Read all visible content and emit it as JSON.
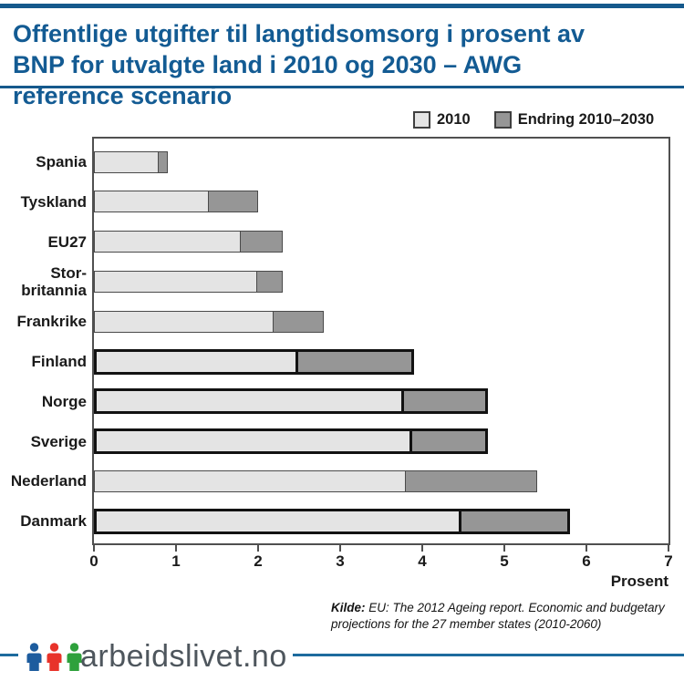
{
  "header": {
    "title": "Offentlige utgifter til langtidsomsorg i prosent av BNP for utvalgte land i 2010 og 2030 – AWG reference scenario"
  },
  "chart_data": {
    "type": "bar",
    "orientation": "horizontal",
    "title": "Offentlige utgifter til langtidsomsorg i prosent av BNP for utvalgte land i 2010 og 2030 – AWG reference scenario",
    "categories": [
      "Spania",
      "Tyskland",
      "EU27",
      "Stor-\nbritannia",
      "Frankrike",
      "Finland",
      "Norge",
      "Sverige",
      "Nederland",
      "Danmark"
    ],
    "series": [
      {
        "name": "2010",
        "values": [
          0.8,
          1.4,
          1.8,
          2.0,
          2.2,
          2.5,
          3.8,
          3.9,
          3.8,
          4.5
        ]
      },
      {
        "name": "Endring 2010–2030",
        "values": [
          0.1,
          0.6,
          0.5,
          0.3,
          0.6,
          1.4,
          1.0,
          0.9,
          1.6,
          1.3
        ]
      }
    ],
    "totals_2030": [
      0.9,
      2.0,
      2.3,
      2.3,
      2.8,
      3.9,
      4.8,
      4.8,
      5.4,
      5.8
    ],
    "highlighted_categories": [
      "Finland",
      "Norge",
      "Sverige",
      "Danmark"
    ],
    "xlim": [
      0,
      7
    ],
    "xticks": [
      "0",
      "1",
      "2",
      "3",
      "4",
      "5",
      "6",
      "7"
    ],
    "xlabel": "Prosent",
    "legend_position": "top-right",
    "grid": false,
    "colors": {
      "series_2010": "#e4e4e4",
      "series_endring": "#969696",
      "bar_border": "#4a4a4a",
      "highlight_border": "#121212"
    }
  },
  "source": {
    "label": "Kilde:",
    "text": " EU: The 2012 Ageing report. Economic and budgetary projections for the 27 member states (2010-2060)"
  },
  "footer": {
    "brand": "arbeidslivet.no",
    "icon_colors": {
      "blue": "#1d5c9e",
      "red": "#e8332a",
      "green": "#2ea13c"
    },
    "rule_color": "#1d6b9e",
    "accent_blue": "#15598c"
  }
}
